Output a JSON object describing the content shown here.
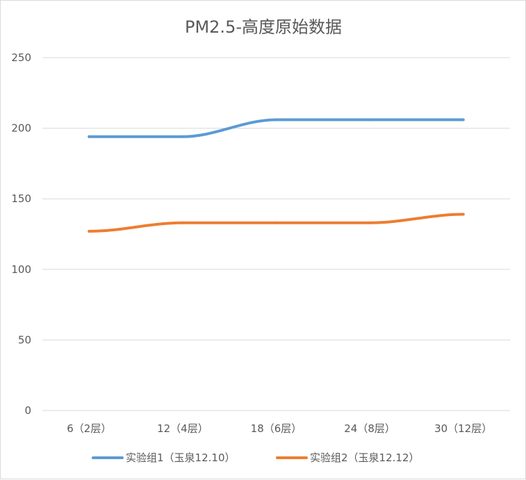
{
  "chart_data": {
    "type": "line",
    "title": "PM2.5-高度原始数据",
    "xlabel": "",
    "ylabel": "",
    "categories": [
      "6（2层）",
      "12（4层）",
      "18（6层）",
      "24（8层）",
      "30（12层）"
    ],
    "ylim": [
      0,
      250
    ],
    "yticks": [
      "0",
      "50",
      "100",
      "150",
      "200",
      "250"
    ],
    "grid": true,
    "legend_position": "bottom",
    "series": [
      {
        "name": "实验组1（玉泉12.10）",
        "color": "#5b9bd5",
        "values": [
          194,
          194,
          206,
          206,
          206
        ]
      },
      {
        "name": "实验组2（玉泉12.12）",
        "color": "#ed7d31",
        "values": [
          127,
          133,
          133,
          133,
          139
        ]
      }
    ]
  }
}
